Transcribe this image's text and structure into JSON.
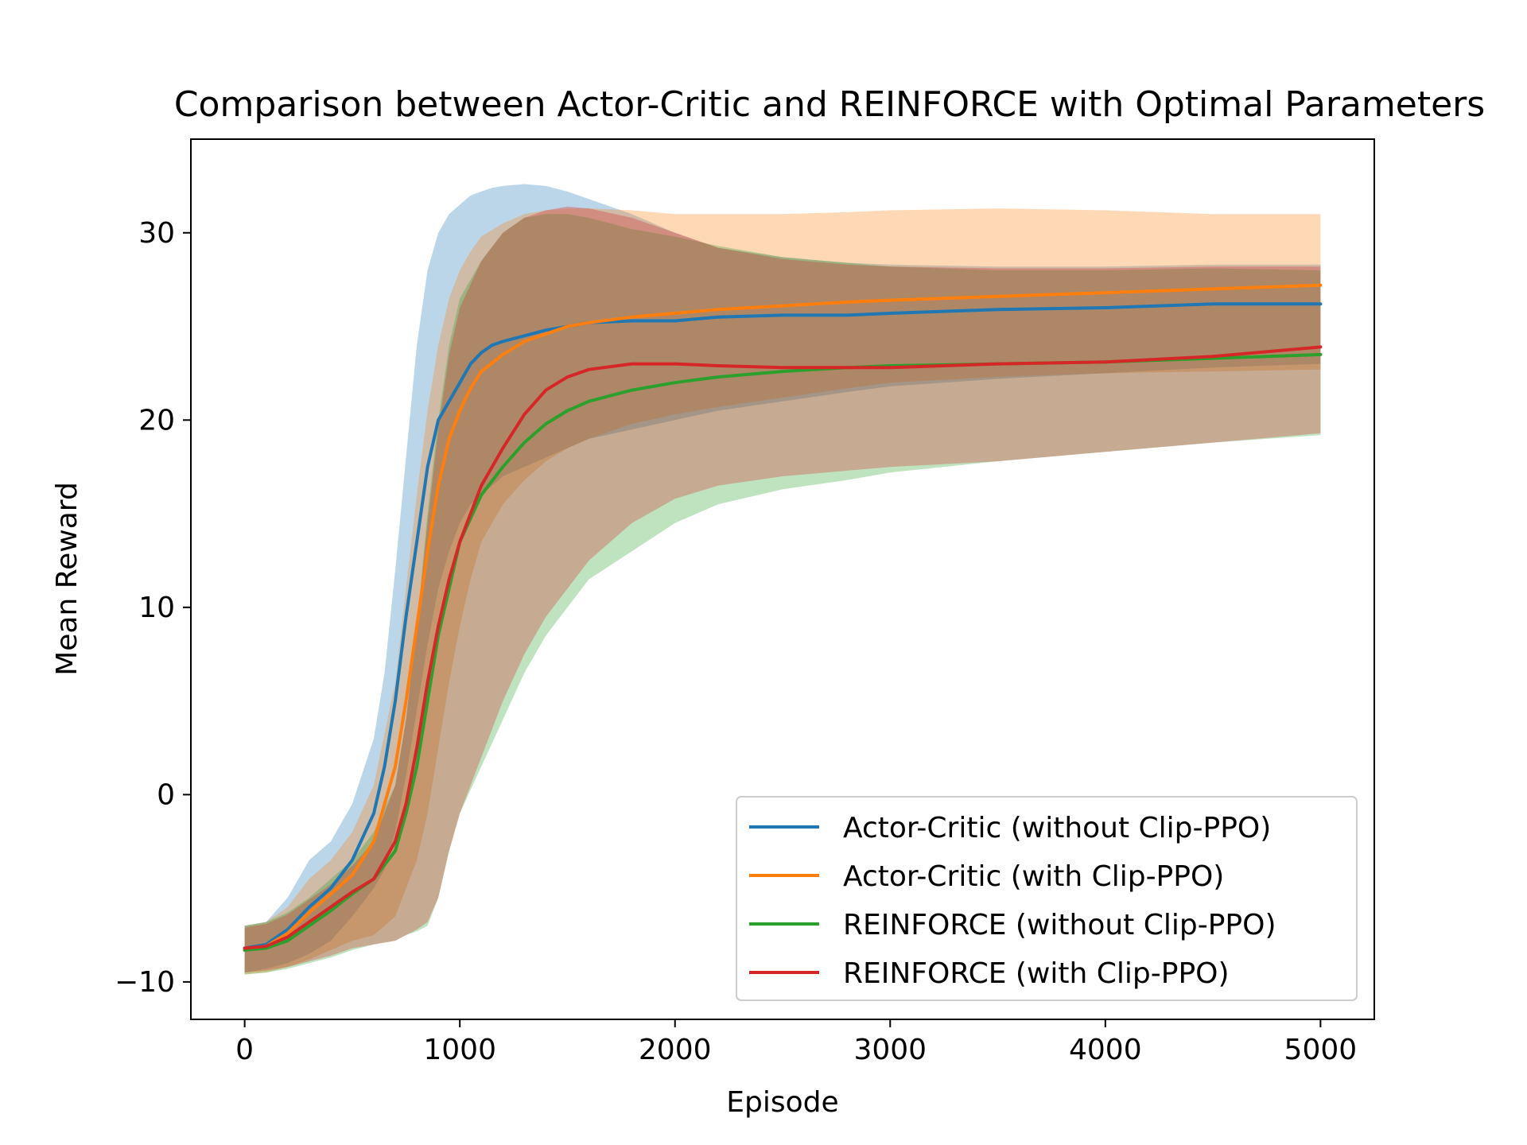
{
  "chart_data": {
    "type": "line",
    "title": "Comparison between Actor-Critic and REINFORCE with Optimal Parameters",
    "xlabel": "Episode",
    "ylabel": "Mean Reward",
    "xlim": [
      -250,
      5250
    ],
    "ylim": [
      -12,
      35
    ],
    "xticks": [
      0,
      1000,
      2000,
      3000,
      4000,
      5000
    ],
    "yticks": [
      -10,
      0,
      10,
      20,
      30
    ],
    "grid": false,
    "legend_position": "lower-right",
    "band": "shaded region around each mean line",
    "series": [
      {
        "name": "Actor-Critic (without Clip-PPO)",
        "color": "#1f77b4",
        "x": [
          0,
          100,
          200,
          300,
          400,
          500,
          600,
          650,
          700,
          750,
          800,
          850,
          900,
          950,
          1000,
          1050,
          1100,
          1150,
          1200,
          1300,
          1400,
          1500,
          1600,
          1800,
          2000,
          2200,
          2500,
          2800,
          3000,
          3500,
          4000,
          4500,
          5000
        ],
        "mean": [
          -8.2,
          -8.0,
          -7.2,
          -6.0,
          -5.0,
          -3.5,
          -1.0,
          1.5,
          5.0,
          9.5,
          13.5,
          17.5,
          20.0,
          21.0,
          22.0,
          23.0,
          23.6,
          24.0,
          24.2,
          24.5,
          24.8,
          25.0,
          25.2,
          25.3,
          25.3,
          25.5,
          25.6,
          25.6,
          25.7,
          25.9,
          26.0,
          26.2,
          26.2
        ],
        "upper": [
          -7.0,
          -6.8,
          -5.5,
          -3.5,
          -2.5,
          -0.5,
          3.0,
          6.5,
          12.0,
          18.0,
          24.0,
          28.0,
          30.0,
          31.0,
          31.5,
          32.0,
          32.2,
          32.4,
          32.5,
          32.6,
          32.5,
          32.2,
          31.8,
          31.0,
          30.0,
          29.2,
          28.7,
          28.4,
          28.3,
          28.2,
          28.2,
          28.3,
          28.3
        ],
        "lower": [
          -9.5,
          -9.3,
          -9.0,
          -8.5,
          -7.8,
          -6.5,
          -5.0,
          -4.0,
          -2.0,
          1.0,
          4.5,
          8.0,
          11.0,
          13.0,
          14.5,
          15.5,
          16.0,
          16.5,
          17.0,
          17.5,
          18.0,
          18.5,
          19.0,
          19.5,
          20.0,
          20.5,
          21.0,
          21.5,
          21.8,
          22.2,
          22.5,
          22.8,
          23.0
        ]
      },
      {
        "name": "Actor-Critic (with Clip-PPO)",
        "color": "#ff7f0e",
        "x": [
          0,
          100,
          200,
          300,
          400,
          500,
          600,
          700,
          750,
          800,
          850,
          900,
          950,
          1000,
          1050,
          1100,
          1200,
          1300,
          1400,
          1500,
          1600,
          1800,
          2000,
          2200,
          2500,
          2800,
          3000,
          3500,
          4000,
          4500,
          5000
        ],
        "mean": [
          -8.3,
          -8.1,
          -7.4,
          -6.3,
          -5.3,
          -4.3,
          -2.5,
          1.5,
          5.0,
          9.0,
          13.0,
          16.5,
          19.0,
          20.5,
          21.7,
          22.6,
          23.5,
          24.2,
          24.6,
          25.0,
          25.2,
          25.5,
          25.7,
          25.9,
          26.1,
          26.3,
          26.4,
          26.6,
          26.8,
          27.0,
          27.2
        ],
        "upper": [
          -7.0,
          -6.8,
          -6.0,
          -4.5,
          -3.5,
          -2.0,
          0.5,
          6.0,
          11.0,
          16.0,
          20.5,
          24.0,
          26.5,
          28.0,
          29.0,
          29.8,
          30.5,
          31.0,
          31.2,
          31.3,
          31.3,
          31.2,
          31.0,
          31.0,
          31.0,
          31.1,
          31.2,
          31.3,
          31.2,
          31.0,
          31.0
        ],
        "lower": [
          -9.6,
          -9.5,
          -9.2,
          -8.8,
          -8.3,
          -7.8,
          -7.5,
          -6.5,
          -5.0,
          -3.5,
          -1.0,
          2.5,
          6.0,
          9.0,
          11.5,
          13.5,
          15.5,
          16.8,
          17.8,
          18.5,
          19.0,
          19.8,
          20.3,
          20.7,
          21.2,
          21.7,
          22.0,
          22.3,
          22.5,
          22.6,
          22.7
        ]
      },
      {
        "name": "REINFORCE (without Clip-PPO)",
        "color": "#2ca02c",
        "x": [
          0,
          100,
          200,
          300,
          400,
          500,
          600,
          700,
          750,
          800,
          850,
          900,
          950,
          1000,
          1100,
          1200,
          1300,
          1400,
          1500,
          1600,
          1800,
          2000,
          2200,
          2500,
          2800,
          3000,
          3500,
          4000,
          4500,
          5000
        ],
        "mean": [
          -8.3,
          -8.2,
          -7.8,
          -7.0,
          -6.2,
          -5.3,
          -4.5,
          -3.0,
          -1.0,
          1.5,
          5.0,
          8.5,
          11.0,
          13.5,
          16.0,
          17.5,
          18.8,
          19.8,
          20.5,
          21.0,
          21.6,
          22.0,
          22.3,
          22.6,
          22.8,
          22.9,
          23.0,
          23.1,
          23.3,
          23.5
        ],
        "upper": [
          -7.0,
          -6.8,
          -6.3,
          -5.5,
          -4.5,
          -3.5,
          -2.0,
          0.5,
          4.0,
          9.0,
          15.0,
          20.0,
          24.0,
          26.5,
          28.5,
          30.0,
          30.8,
          31.0,
          31.0,
          30.8,
          30.2,
          29.8,
          29.3,
          28.7,
          28.4,
          28.2,
          28.0,
          28.0,
          28.1,
          28.0
        ],
        "lower": [
          -9.6,
          -9.5,
          -9.3,
          -9.0,
          -8.7,
          -8.3,
          -8.0,
          -7.8,
          -7.5,
          -7.3,
          -7.0,
          -5.5,
          -3.0,
          -1.0,
          1.5,
          4.0,
          6.5,
          8.5,
          10.0,
          11.5,
          13.0,
          14.5,
          15.5,
          16.3,
          16.8,
          17.2,
          17.8,
          18.3,
          18.8,
          19.2
        ]
      },
      {
        "name": "REINFORCE (with Clip-PPO)",
        "color": "#d62728",
        "x": [
          0,
          100,
          200,
          300,
          400,
          500,
          600,
          700,
          750,
          800,
          850,
          900,
          950,
          1000,
          1100,
          1200,
          1300,
          1400,
          1500,
          1600,
          1800,
          2000,
          2200,
          2500,
          2800,
          3000,
          3500,
          4000,
          4500,
          5000
        ],
        "mean": [
          -8.2,
          -8.1,
          -7.6,
          -6.8,
          -6.0,
          -5.2,
          -4.5,
          -2.5,
          -0.5,
          2.5,
          6.0,
          9.0,
          11.5,
          13.5,
          16.5,
          18.5,
          20.3,
          21.6,
          22.3,
          22.7,
          23.0,
          23.0,
          22.9,
          22.8,
          22.8,
          22.8,
          23.0,
          23.1,
          23.4,
          23.9
        ],
        "upper": [
          -7.1,
          -6.9,
          -6.4,
          -5.6,
          -4.8,
          -3.8,
          -2.5,
          0.5,
          4.0,
          9.0,
          14.5,
          19.5,
          23.5,
          26.0,
          28.5,
          30.0,
          30.8,
          31.2,
          31.4,
          31.3,
          30.8,
          30.0,
          29.2,
          28.6,
          28.3,
          28.2,
          28.1,
          28.1,
          28.2,
          28.2
        ],
        "lower": [
          -9.5,
          -9.4,
          -9.2,
          -8.9,
          -8.6,
          -8.2,
          -8.0,
          -7.8,
          -7.5,
          -7.2,
          -6.8,
          -5.5,
          -3.0,
          -1.0,
          2.0,
          5.0,
          7.5,
          9.5,
          11.0,
          12.5,
          14.5,
          15.8,
          16.5,
          17.0,
          17.3,
          17.5,
          17.8,
          18.3,
          18.8,
          19.3
        ]
      }
    ]
  }
}
